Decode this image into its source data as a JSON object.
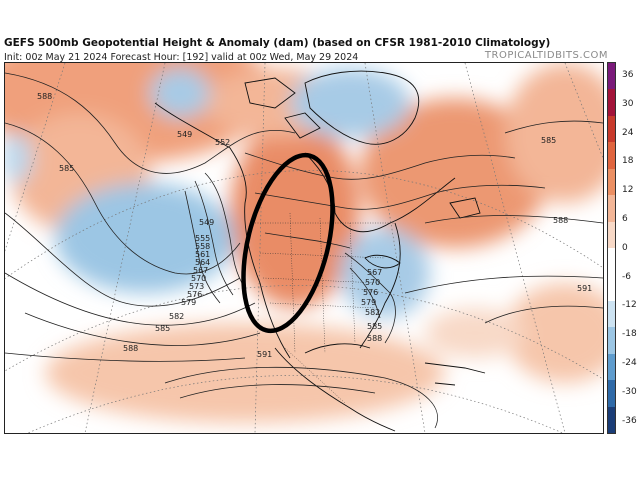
{
  "header": {
    "title": "GEFS 500mb Geopotential Height & Anomaly (dam) (based on CFSR 1981-2010 Climatology)",
    "subtitle": "Init: 00z May 21 2024   Forecast Hour: [192]   valid at 00z Wed, May 29 2024",
    "credit": "TROPICALTIDBITS.COM"
  },
  "colorbar": {
    "ticks": [
      "36",
      "30",
      "24",
      "18",
      "12",
      "6",
      "0",
      "-6",
      "-12",
      "-18",
      "-24",
      "-30",
      "-36"
    ],
    "colors": [
      "#7a1a7a",
      "#a3143a",
      "#c83a2c",
      "#e0653f",
      "#eb8f63",
      "#f3b697",
      "#f8d9c7",
      "#ffffff",
      "#ffffff",
      "#cde3f2",
      "#9cc6e4",
      "#5f9ccd",
      "#2f6aa8",
      "#1b3d77"
    ]
  },
  "contour_labels": [
    "588",
    "585",
    "549",
    "552",
    "555",
    "558",
    "561",
    "564",
    "567",
    "570",
    "573",
    "576",
    "579",
    "582",
    "585",
    "588",
    "591",
    "567",
    "570",
    "576",
    "579",
    "582",
    "585",
    "588",
    "585",
    "588",
    "591",
    "549"
  ],
  "annotation": {
    "shape": "ellipse",
    "color": "#000000"
  }
}
